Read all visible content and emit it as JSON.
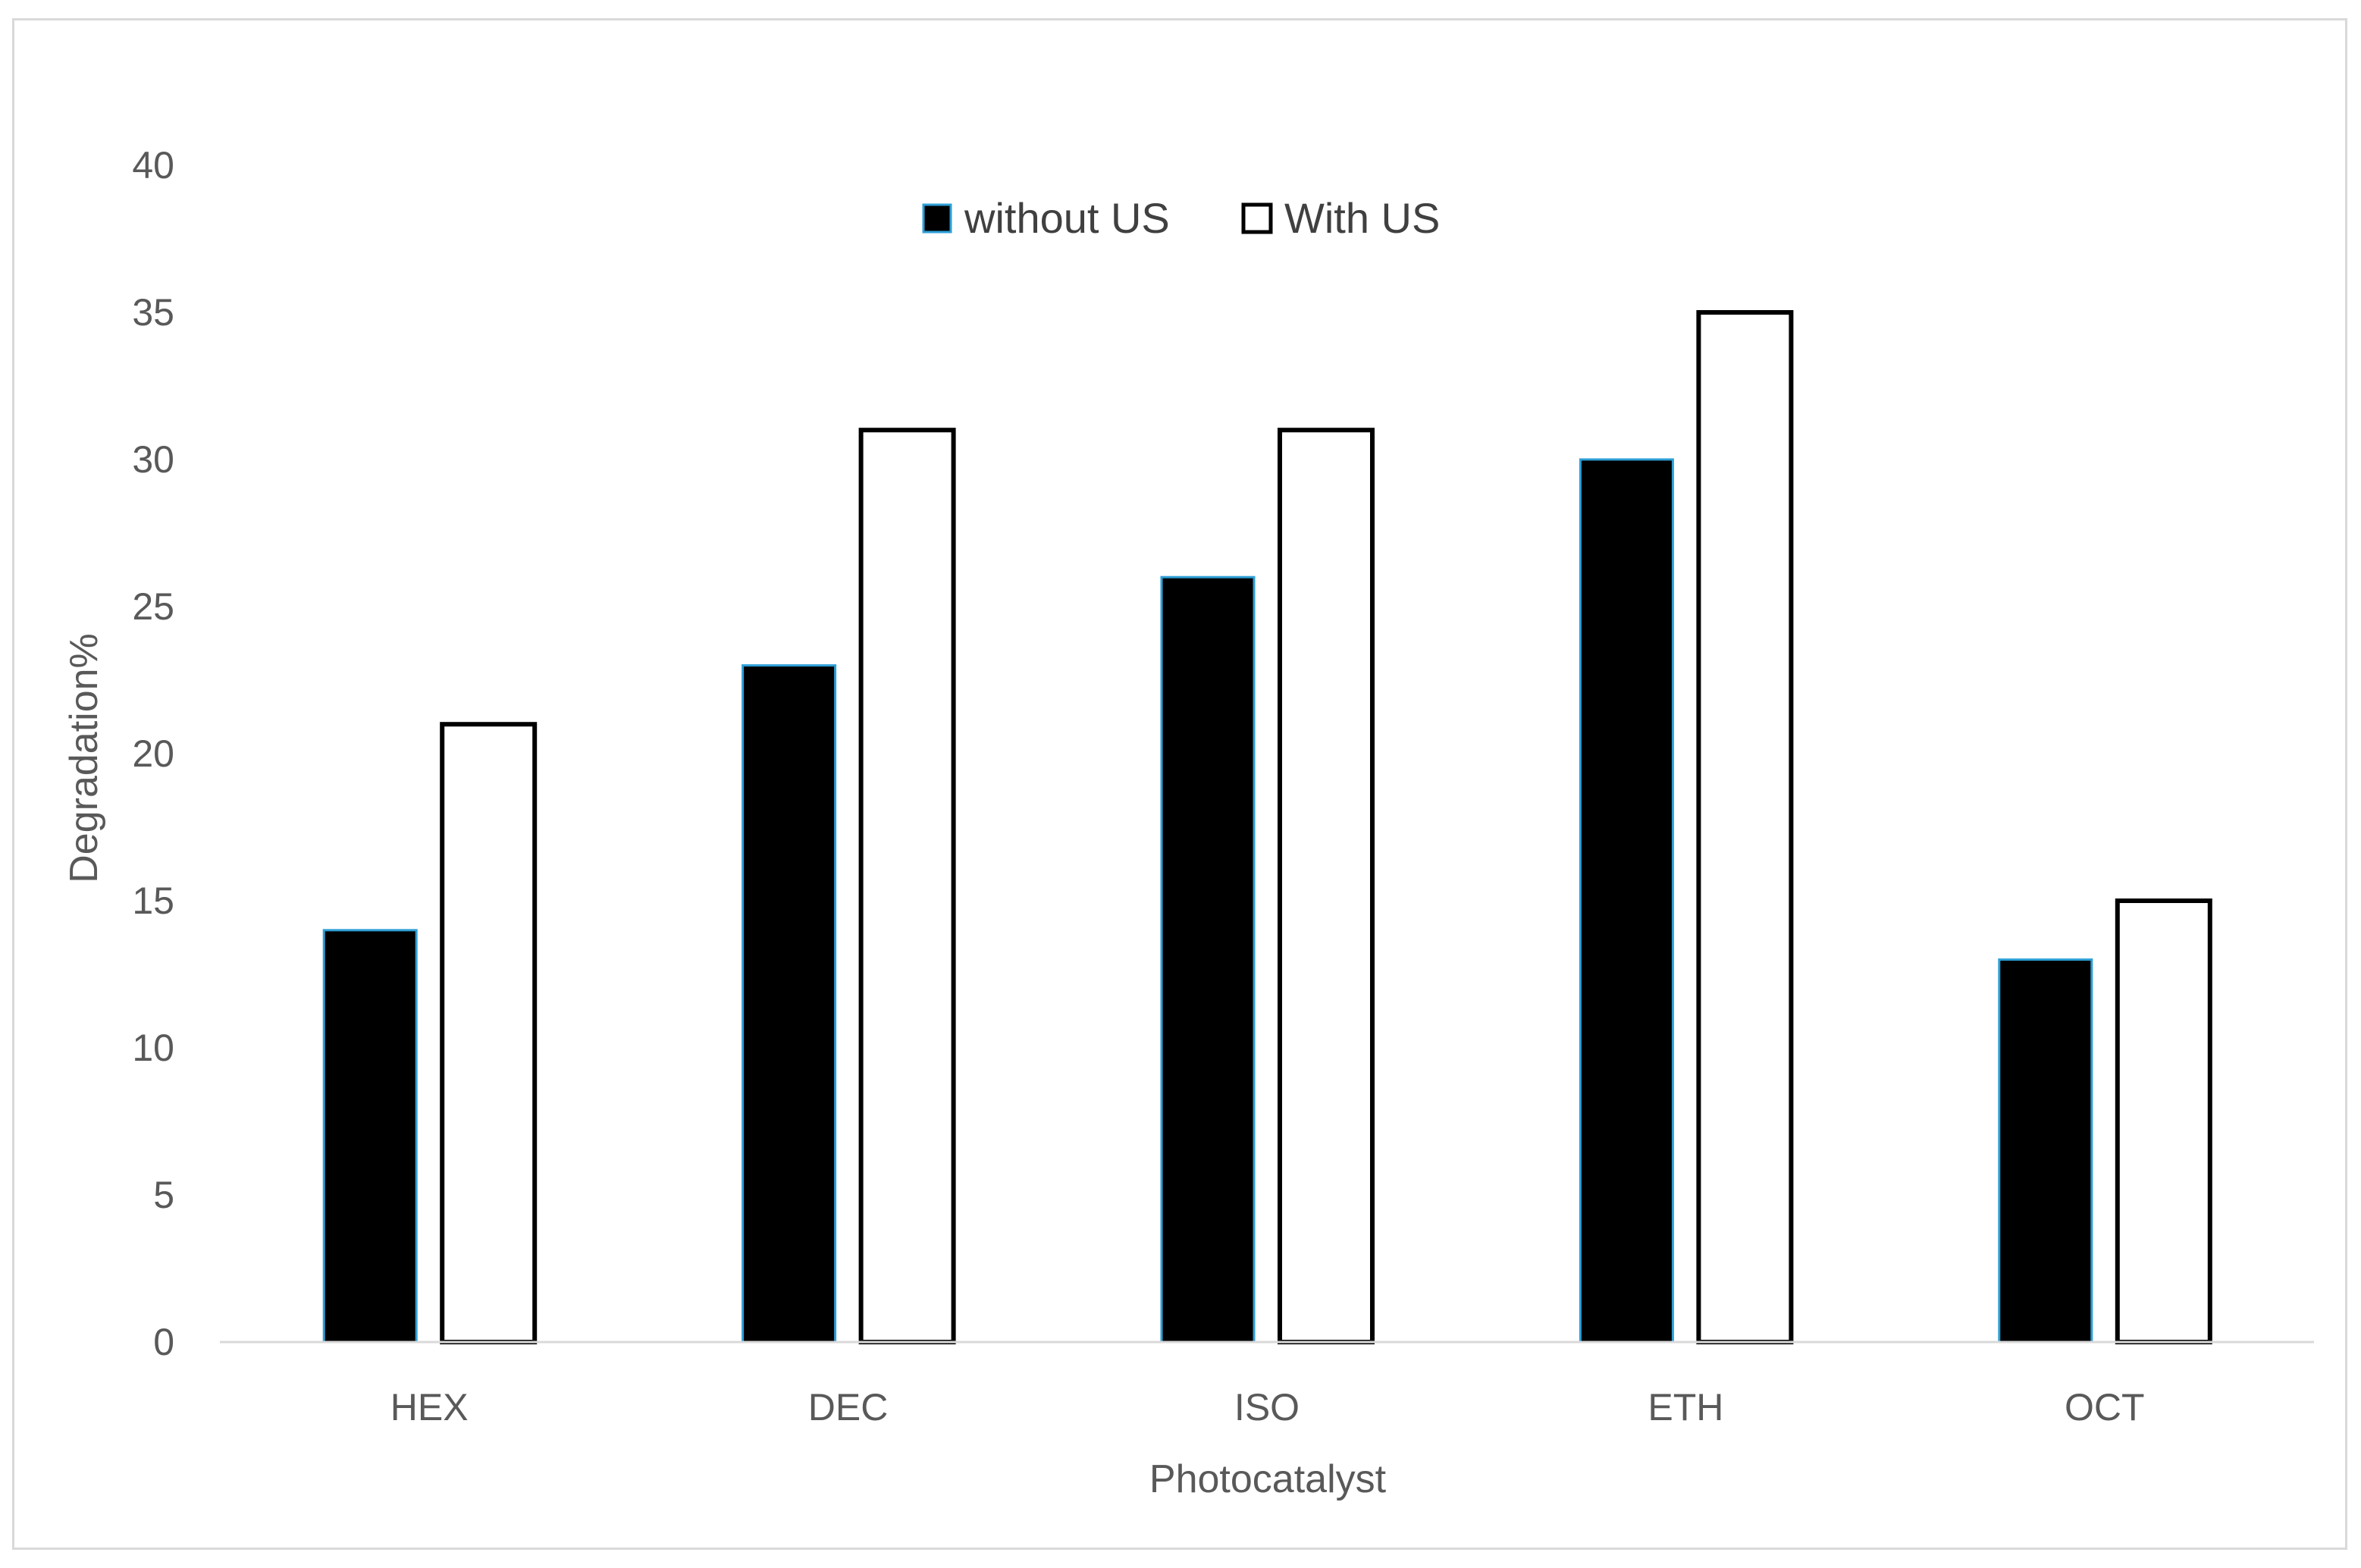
{
  "chart_data": {
    "type": "bar",
    "title": "",
    "xlabel": "Photocatalyst",
    "ylabel": "Degradation%",
    "categories": [
      "HEX",
      "DEC",
      "ISO",
      "ETH",
      "OCT"
    ],
    "series": [
      {
        "name": "without US",
        "values": [
          14,
          23,
          26,
          30,
          13
        ],
        "fill": "#000000",
        "stroke": "#2e9fd6"
      },
      {
        "name": "With US",
        "values": [
          21,
          31,
          31,
          35,
          15
        ],
        "fill": "#ffffff",
        "stroke": "#000000"
      }
    ],
    "ylim": [
      0,
      40
    ],
    "yticks": [
      0,
      5,
      10,
      15,
      20,
      25,
      30,
      35,
      40
    ],
    "grid": false,
    "legend_position": "top-center",
    "colors": {
      "axis": "#d9d9d9",
      "text": "#595959",
      "legend_text": "#404040"
    }
  }
}
